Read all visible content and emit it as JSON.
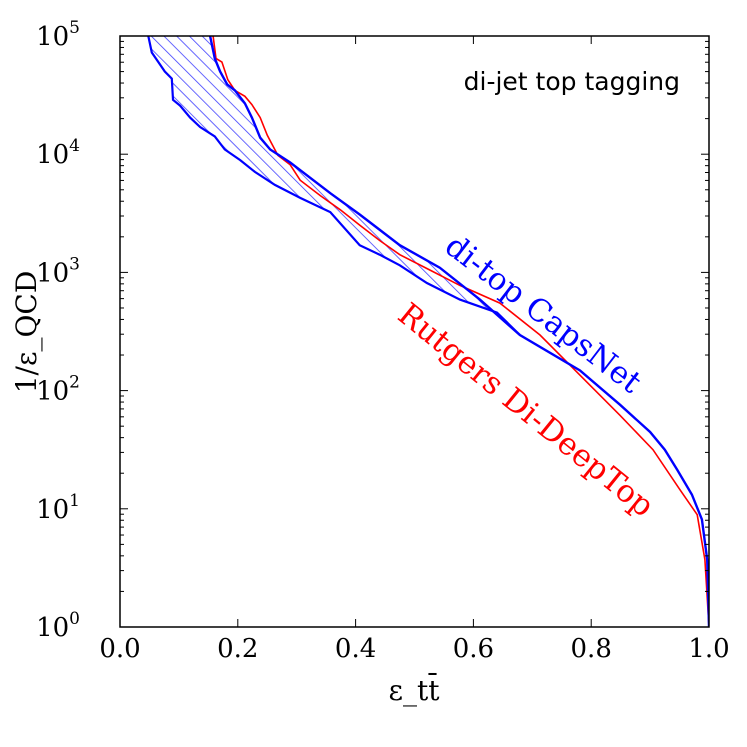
{
  "chart_data": {
    "type": "line",
    "title": "di-jet top tagging",
    "xlabel": "ε_tt̄",
    "ylabel": "1/ε_QCD",
    "xlim": [
      0.0,
      1.0
    ],
    "ylim_log10": [
      0,
      5
    ],
    "yscale": "log",
    "grid": false,
    "x_ticks": [
      "0.0",
      "0.2",
      "0.4",
      "0.6",
      "0.8",
      "1.0"
    ],
    "y_ticks": [
      {
        "base": "10",
        "exp": "0"
      },
      {
        "base": "10",
        "exp": "1"
      },
      {
        "base": "10",
        "exp": "2"
      },
      {
        "base": "10",
        "exp": "3"
      },
      {
        "base": "10",
        "exp": "4"
      },
      {
        "base": "10",
        "exp": "5"
      }
    ],
    "series": [
      {
        "name": "Rutgers Di-DeepTop",
        "color": "#ff0000",
        "points_log10y": [
          [
            0.158,
            5.0
          ],
          [
            0.163,
            4.81
          ],
          [
            0.173,
            4.78
          ],
          [
            0.183,
            4.63
          ],
          [
            0.195,
            4.54
          ],
          [
            0.212,
            4.49
          ],
          [
            0.224,
            4.42
          ],
          [
            0.238,
            4.31
          ],
          [
            0.25,
            4.16
          ],
          [
            0.268,
            3.99
          ],
          [
            0.289,
            3.91
          ],
          [
            0.306,
            3.78
          ],
          [
            0.34,
            3.65
          ],
          [
            0.374,
            3.53
          ],
          [
            0.407,
            3.4
          ],
          [
            0.441,
            3.27
          ],
          [
            0.475,
            3.15
          ],
          [
            0.526,
            3.02
          ],
          [
            0.577,
            2.89
          ],
          [
            0.645,
            2.74
          ],
          [
            0.713,
            2.47
          ],
          [
            0.781,
            2.13
          ],
          [
            0.849,
            1.79
          ],
          [
            0.905,
            1.5
          ],
          [
            0.951,
            1.16
          ],
          [
            0.98,
            0.95
          ],
          [
            0.993,
            0.57
          ],
          [
            1.0,
            0.0
          ]
        ]
      },
      {
        "name": "di-top CapsNet",
        "color": "#0000ff",
        "upper_log10y": [
          [
            0.153,
            5.0
          ],
          [
            0.161,
            4.81
          ],
          [
            0.17,
            4.7
          ],
          [
            0.182,
            4.59
          ],
          [
            0.195,
            4.54
          ],
          [
            0.212,
            4.43
          ],
          [
            0.224,
            4.31
          ],
          [
            0.238,
            4.14
          ],
          [
            0.255,
            4.04
          ],
          [
            0.289,
            3.93
          ],
          [
            0.357,
            3.67
          ],
          [
            0.407,
            3.49
          ],
          [
            0.475,
            3.23
          ],
          [
            0.543,
            3.04
          ],
          [
            0.611,
            2.77
          ],
          [
            0.679,
            2.47
          ],
          [
            0.781,
            2.17
          ],
          [
            0.849,
            1.88
          ],
          [
            0.9,
            1.65
          ],
          [
            0.925,
            1.5
          ],
          [
            0.946,
            1.33
          ],
          [
            0.971,
            1.12
          ],
          [
            0.988,
            0.91
          ],
          [
            0.997,
            0.57
          ],
          [
            1.0,
            0.0
          ]
        ],
        "lower_log10y": [
          [
            0.048,
            5.0
          ],
          [
            0.054,
            4.86
          ],
          [
            0.065,
            4.78
          ],
          [
            0.076,
            4.7
          ],
          [
            0.088,
            4.64
          ],
          [
            0.09,
            4.46
          ],
          [
            0.102,
            4.41
          ],
          [
            0.119,
            4.31
          ],
          [
            0.136,
            4.23
          ],
          [
            0.161,
            4.15
          ],
          [
            0.178,
            4.04
          ],
          [
            0.204,
            3.95
          ],
          [
            0.229,
            3.85
          ],
          [
            0.263,
            3.74
          ],
          [
            0.306,
            3.63
          ],
          [
            0.357,
            3.51
          ],
          [
            0.407,
            3.23
          ],
          [
            0.441,
            3.15
          ],
          [
            0.475,
            3.06
          ],
          [
            0.521,
            2.91
          ],
          [
            0.577,
            2.77
          ],
          [
            0.64,
            2.66
          ],
          [
            0.679,
            2.47
          ]
        ]
      }
    ]
  }
}
